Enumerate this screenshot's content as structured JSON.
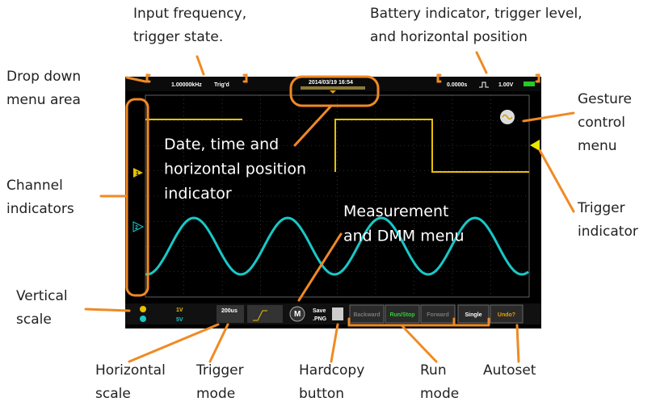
{
  "annotations": [
    [
      "Input frequency,",
      "trigger state."
    ],
    [
      "Battery indicator, trigger level,",
      "and horizontal position"
    ],
    [
      "Drop down",
      "menu area"
    ],
    [
      "Gesture",
      "control",
      "menu"
    ],
    [
      "Date, time and",
      "horizontal position",
      "indicator"
    ],
    [
      "Channel",
      "indicators"
    ],
    [
      "Trigger",
      "indicator"
    ],
    [
      "Measurement",
      "and DMM menu"
    ],
    [
      "Vertical",
      "scale"
    ],
    [
      "Horizontal",
      "scale"
    ],
    [
      "Trigger",
      "mode"
    ],
    [
      "Hardcopy",
      "button"
    ],
    [
      "Run",
      "mode"
    ],
    [
      "Autoset"
    ]
  ],
  "screen": {
    "frequency": "1.00000kHz",
    "trigger_state": "Trig'd",
    "datetime": "2014/03/19  16:54",
    "horizontal_position": "0.0000s",
    "trigger_level": "1.00V",
    "ch1_label": "1",
    "ch2_label": "2",
    "ch1_scale": "1V",
    "ch2_scale": "5V",
    "timebase": "200us",
    "measure_button": "M",
    "save_label": [
      "Save",
      ".PNG"
    ],
    "buttons": [
      "Backward",
      "Run/Stop",
      "Forward",
      "Single",
      "Undo?"
    ]
  }
}
